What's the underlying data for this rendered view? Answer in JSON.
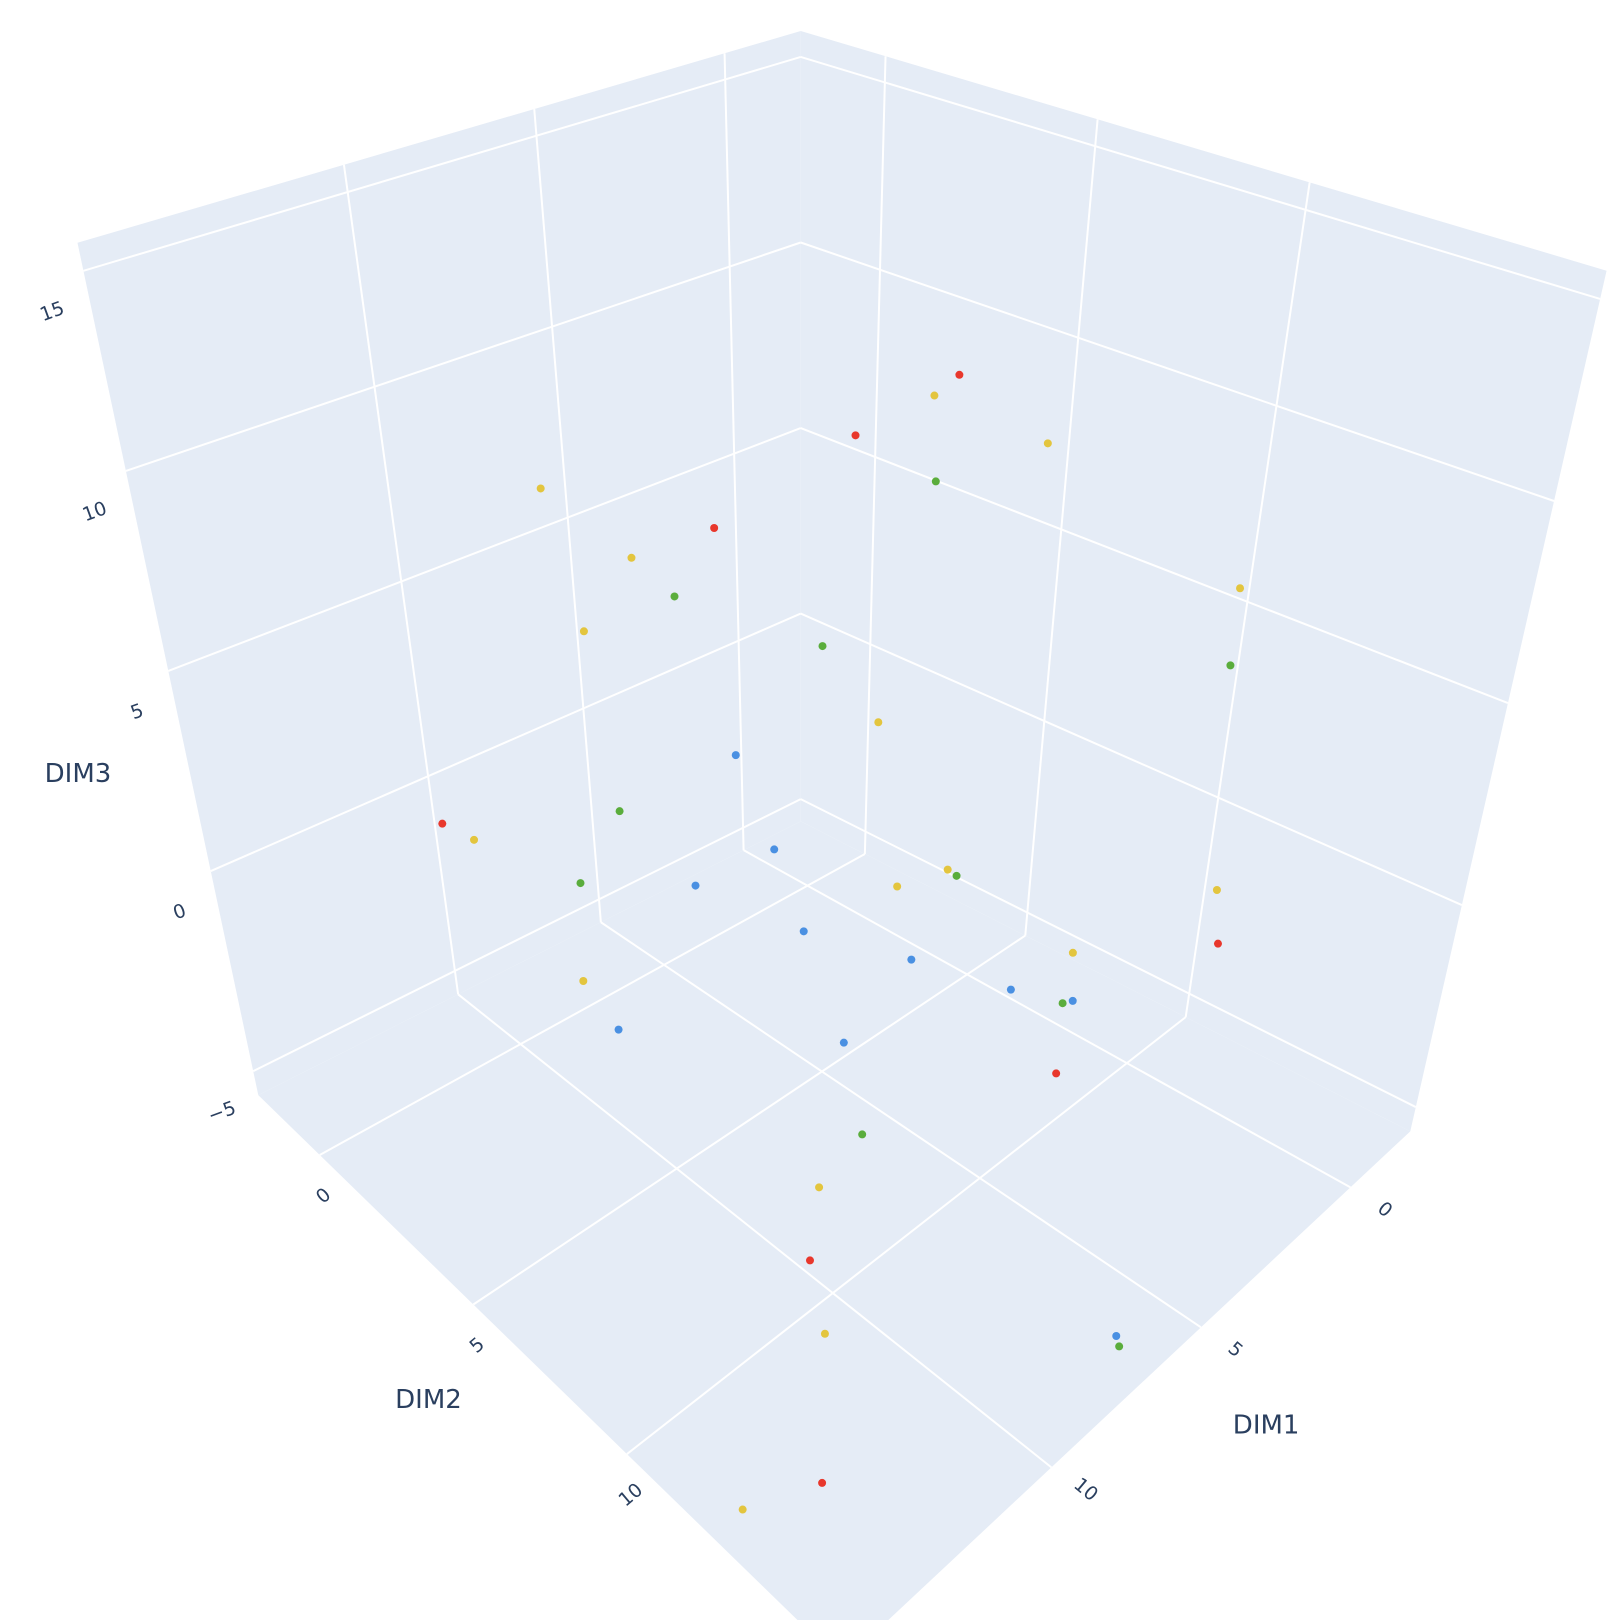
{
  "chart_data": {
    "type": "scatter3d",
    "xlabel": "DIM1",
    "ylabel": "DIM2",
    "zlabel": "DIM3",
    "xlim": [
      -2,
      17
    ],
    "ylim": [
      -2,
      17
    ],
    "zlim": [
      -5.6,
      15.7
    ],
    "xticks": [
      0,
      5,
      10
    ],
    "yticks": [
      0,
      5,
      10
    ],
    "zticks": [
      {
        "value": -5,
        "label": "−5"
      },
      0,
      5,
      10,
      15
    ],
    "grid": true,
    "series": [
      {
        "color": "#e3c53e",
        "x": [
          4.4,
          5.9,
          8.2,
          11.6,
          11.3,
          15.3,
          13.6,
          8.5,
          7.3,
          14.2,
          16.5,
          5.3,
          5.5,
          7.7,
          8.2,
          12.3
        ],
        "y": [
          10.0,
          8.5,
          2.8,
          3.8,
          4.4,
          4.8,
          6.0,
          10.3,
          10.6,
          13.7,
          13.3,
          15.8,
          16.3,
          14.5,
          9.4,
          11.7
        ],
        "z": [
          11.4,
          12.5,
          7.2,
          10.4,
          7.2,
          4.0,
          0.8,
          2.9,
          2.9,
          -2.4,
          -5.0,
          10.4,
          4.0,
          2.9,
          6.1,
          -1.3
        ]
      },
      {
        "color": "#5aad3c",
        "x": [
          8.8,
          8.7,
          12.3,
          6.7,
          7.9,
          7.7,
          4.1,
          4.6,
          10.8,
          10.4
        ],
        "y": [
          4.5,
          12.1,
          4.8,
          6.5,
          14.5,
          16.8,
          7.0,
          15.2,
          4.6,
          11.2
        ],
        "z": [
          7.2,
          4.0,
          1.9,
          6.1,
          1.9,
          -4.5,
          9.3,
          8.2,
          2.9,
          -1.3
        ]
      },
      {
        "color": "#4a90e2",
        "x": [
          10.0,
          11.1,
          10.2,
          8.3,
          14.2,
          10.7,
          6.6,
          12.1,
          7.7,
          11.6
        ],
        "y": [
          7.2,
          10.1,
          12.3,
          13.4,
          7.6,
          8.9,
          15.8,
          12.2,
          14.6,
          7.5
        ],
        "z": [
          5.1,
          2.9,
          2.9,
          1.9,
          0.8,
          4.0,
          -5.4,
          1.9,
          1.9,
          2.9
        ]
      },
      {
        "color": "#e8372c",
        "x": [
          15.4,
          7.3,
          6.7,
          4.8,
          15.1,
          12.9,
          8.4,
          5.5
        ],
        "y": [
          4.0,
          4.2,
          7.3,
          8.1,
          14.5,
          12.0,
          14.9,
          16.5
        ],
        "z": [
          4.0,
          8.2,
          11.4,
          12.5,
          -4.5,
          -2.4,
          0.8,
          2.9
        ]
      }
    ]
  }
}
